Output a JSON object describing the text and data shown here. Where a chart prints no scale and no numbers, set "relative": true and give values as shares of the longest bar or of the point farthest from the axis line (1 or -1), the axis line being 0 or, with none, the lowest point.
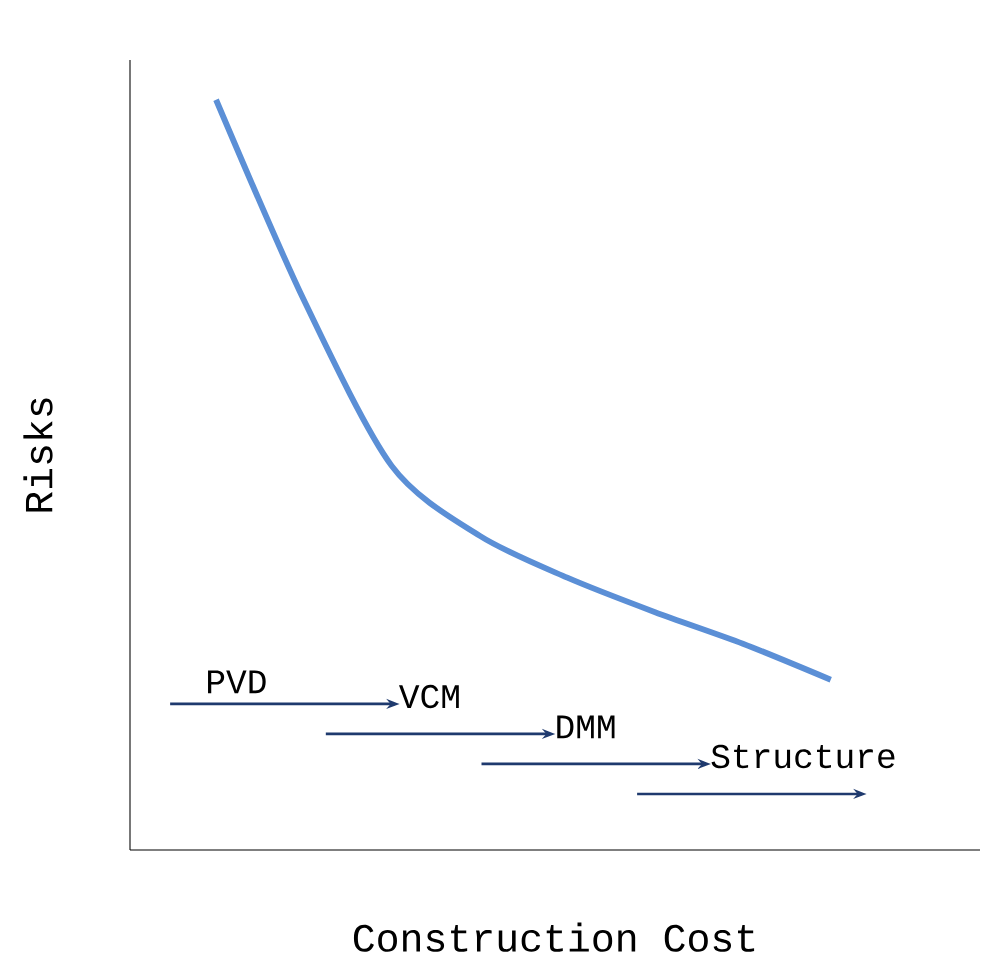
{
  "chart_data": {
    "type": "line",
    "relative": true,
    "xlabel": "Construction Cost",
    "ylabel": "Risks",
    "color": "#5b8fd6",
    "categories": [
      null,
      null,
      null,
      null,
      null,
      null,
      null,
      null
    ],
    "values": [
      1,
      0.733,
      0.512,
      0.419,
      0.363,
      0.317,
      0.275,
      0.227
    ],
    "annotations": [
      "PVD",
      "VCM",
      "DMM",
      "Structure"
    ]
  }
}
